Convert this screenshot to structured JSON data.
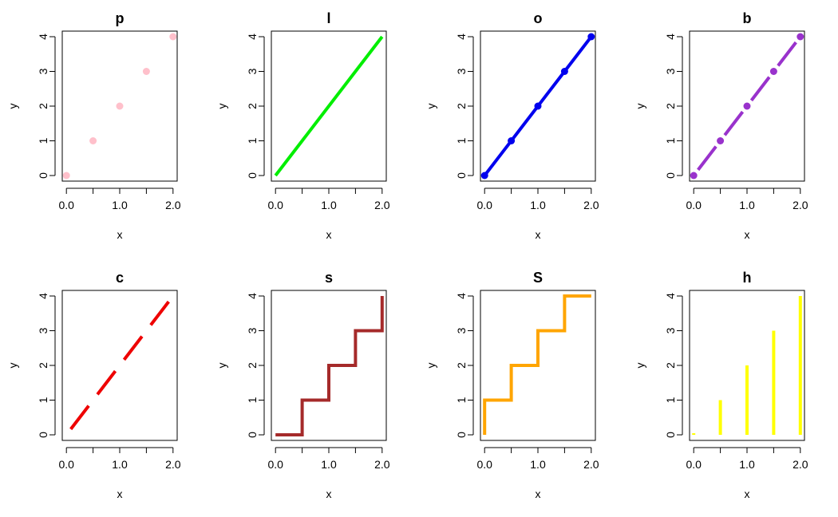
{
  "chart_data": [
    {
      "type": "scatter",
      "title": "p",
      "xlabel": "x",
      "ylabel": "y",
      "plot_type": "p",
      "color": "#FFC0CB",
      "x": [
        0.0,
        0.5,
        1.0,
        1.5,
        2.0
      ],
      "y": [
        0,
        1,
        2,
        3,
        4
      ],
      "xlim": [
        0,
        2
      ],
      "ylim": [
        0,
        4
      ],
      "xticks": [
        "0.0",
        "1.0",
        "2.0"
      ],
      "yticks": [
        "0",
        "1",
        "2",
        "3",
        "4"
      ]
    },
    {
      "type": "line",
      "title": "l",
      "xlabel": "x",
      "ylabel": "y",
      "plot_type": "l",
      "color": "#00EE00",
      "x": [
        0.0,
        0.5,
        1.0,
        1.5,
        2.0
      ],
      "y": [
        0,
        1,
        2,
        3,
        4
      ],
      "xlim": [
        0,
        2
      ],
      "ylim": [
        0,
        4
      ],
      "xticks": [
        "0.0",
        "1.0",
        "2.0"
      ],
      "yticks": [
        "0",
        "1",
        "2",
        "3",
        "4"
      ]
    },
    {
      "type": "line",
      "title": "o",
      "xlabel": "x",
      "ylabel": "y",
      "plot_type": "o",
      "color": "#0000EE",
      "x": [
        0.0,
        0.5,
        1.0,
        1.5,
        2.0
      ],
      "y": [
        0,
        1,
        2,
        3,
        4
      ],
      "xlim": [
        0,
        2
      ],
      "ylim": [
        0,
        4
      ],
      "xticks": [
        "0.0",
        "1.0",
        "2.0"
      ],
      "yticks": [
        "0",
        "1",
        "2",
        "3",
        "4"
      ]
    },
    {
      "type": "line",
      "title": "b",
      "xlabel": "x",
      "ylabel": "y",
      "plot_type": "b",
      "color": "#9932CC",
      "x": [
        0.0,
        0.5,
        1.0,
        1.5,
        2.0
      ],
      "y": [
        0,
        1,
        2,
        3,
        4
      ],
      "xlim": [
        0,
        2
      ],
      "ylim": [
        0,
        4
      ],
      "xticks": [
        "0.0",
        "1.0",
        "2.0"
      ],
      "yticks": [
        "0",
        "1",
        "2",
        "3",
        "4"
      ]
    },
    {
      "type": "line",
      "title": "c",
      "xlabel": "x",
      "ylabel": "y",
      "plot_type": "c",
      "color": "#EE0000",
      "x": [
        0.0,
        0.5,
        1.0,
        1.5,
        2.0
      ],
      "y": [
        0,
        1,
        2,
        3,
        4
      ],
      "xlim": [
        0,
        2
      ],
      "ylim": [
        0,
        4
      ],
      "xticks": [
        "0.0",
        "1.0",
        "2.0"
      ],
      "yticks": [
        "0",
        "1",
        "2",
        "3",
        "4"
      ]
    },
    {
      "type": "line",
      "title": "s",
      "xlabel": "x",
      "ylabel": "y",
      "plot_type": "s",
      "color": "#A52A2A",
      "x": [
        0.0,
        0.5,
        1.0,
        1.5,
        2.0
      ],
      "y": [
        0,
        1,
        2,
        3,
        4
      ],
      "xlim": [
        0,
        2
      ],
      "ylim": [
        0,
        4
      ],
      "xticks": [
        "0.0",
        "1.0",
        "2.0"
      ],
      "yticks": [
        "0",
        "1",
        "2",
        "3",
        "4"
      ]
    },
    {
      "type": "line",
      "title": "S",
      "xlabel": "x",
      "ylabel": "y",
      "plot_type": "S",
      "color": "#FFA500",
      "x": [
        0.0,
        0.5,
        1.0,
        1.5,
        2.0
      ],
      "y": [
        0,
        1,
        2,
        3,
        4
      ],
      "xlim": [
        0,
        2
      ],
      "ylim": [
        0,
        4
      ],
      "xticks": [
        "0.0",
        "1.0",
        "2.0"
      ],
      "yticks": [
        "0",
        "1",
        "2",
        "3",
        "4"
      ]
    },
    {
      "type": "bar",
      "title": "h",
      "xlabel": "x",
      "ylabel": "y",
      "plot_type": "h",
      "color": "#FFFF00",
      "x": [
        0.0,
        0.5,
        1.0,
        1.5,
        2.0
      ],
      "y": [
        0,
        1,
        2,
        3,
        4
      ],
      "xlim": [
        0,
        2
      ],
      "ylim": [
        0,
        4
      ],
      "xticks": [
        "0.0",
        "1.0",
        "2.0"
      ],
      "yticks": [
        "0",
        "1",
        "2",
        "3",
        "4"
      ]
    }
  ]
}
